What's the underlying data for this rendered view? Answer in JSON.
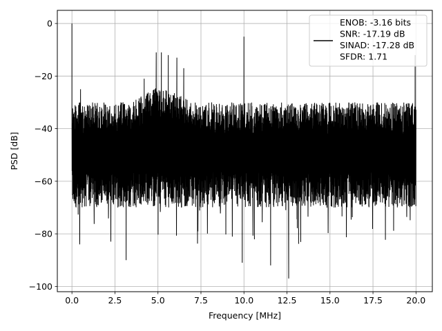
{
  "chart_data": {
    "type": "line",
    "xlabel": "Frequency [MHz]",
    "ylabel": "PSD [dB]",
    "xlim": [
      -0.85,
      20.95
    ],
    "ylim": [
      -102,
      5
    ],
    "x_ticks": [
      0.0,
      2.5,
      5.0,
      7.5,
      10.0,
      12.5,
      15.0,
      17.5,
      20.0
    ],
    "x_tick_labels": [
      "0.0",
      "2.5",
      "5.0",
      "7.5",
      "10.0",
      "12.5",
      "15.0",
      "17.5",
      "20.0"
    ],
    "y_ticks": [
      0,
      -20,
      -40,
      -60,
      -80,
      -100
    ],
    "y_tick_labels": [
      "0",
      "−20",
      "−40",
      "−60",
      "−80",
      "−100"
    ],
    "grid": true,
    "legend_placement": "top-right",
    "series": [
      {
        "name": "ENOB: -3.16 bits\nSNR: -17.19 dB\nSINAD: -17.28 dB\nSFDR: 1.71",
        "color": "#000000",
        "description_of_shape": "dense noise floor between about -30 and -70 dB across 0-20 MHz",
        "spikes": [
          {
            "x": 0.0,
            "y": 0
          },
          {
            "x": 0.1,
            "y": -62
          },
          {
            "x": 0.45,
            "y": -84
          },
          {
            "x": 0.5,
            "y": -25
          },
          {
            "x": 3.15,
            "y": -90
          },
          {
            "x": 4.2,
            "y": -21
          },
          {
            "x": 4.9,
            "y": -11
          },
          {
            "x": 5.2,
            "y": -11
          },
          {
            "x": 5.6,
            "y": -12
          },
          {
            "x": 6.1,
            "y": -13
          },
          {
            "x": 6.5,
            "y": -17
          },
          {
            "x": 9.9,
            "y": -91
          },
          {
            "x": 10.0,
            "y": -5
          },
          {
            "x": 11.55,
            "y": -92
          },
          {
            "x": 12.6,
            "y": -97
          },
          {
            "x": 19.95,
            "y": -12
          }
        ]
      }
    ],
    "legend_lines": [
      "ENOB: -3.16 bits",
      "SNR: -17.19 dB",
      "SINAD: -17.28 dB",
      "SFDR: 1.71"
    ]
  }
}
